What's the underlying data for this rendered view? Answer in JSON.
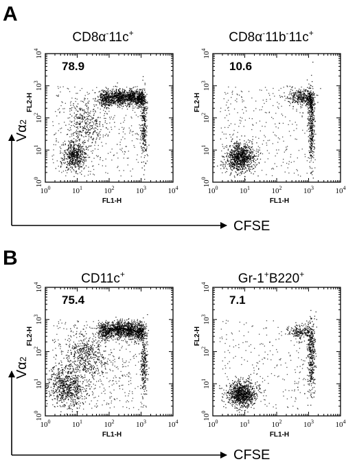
{
  "panels": [
    {
      "letter": "A",
      "x_marker": "CFSE",
      "y_marker_base": "V",
      "y_marker_alpha": "α",
      "y_marker_sub": "2"
    },
    {
      "letter": "B",
      "x_marker": "CFSE",
      "y_marker_base": "V",
      "y_marker_alpha": "α",
      "y_marker_sub": "2"
    }
  ],
  "chart_data": [
    {
      "type": "scatter",
      "panel": "A",
      "title_parts": [
        [
          "CD8",
          ""
        ],
        [
          "α",
          ""
        ],
        [
          "",
          "-"
        ],
        [
          "11c",
          ""
        ],
        [
          "",
          "+"
        ]
      ],
      "percent_label": "78.9",
      "xlabel": "FL1-H",
      "ylabel": "FL2-H",
      "xscale": "log",
      "yscale": "log",
      "xlim": [
        1,
        10000
      ],
      "ylim": [
        1,
        10000
      ],
      "xticks": [
        [
          "10",
          "0"
        ],
        [
          "10",
          "1"
        ],
        [
          "10",
          "2"
        ],
        [
          "10",
          "3"
        ],
        [
          "10",
          "4"
        ]
      ],
      "yticks": [
        [
          "10",
          "0"
        ],
        [
          "10",
          "1"
        ],
        [
          "10",
          "2"
        ],
        [
          "10",
          "3"
        ],
        [
          "10",
          "4"
        ]
      ],
      "populations": [
        {
          "x": 8,
          "y": 7,
          "spread_x": 0.18,
          "spread_y": 0.22,
          "n": 520,
          "angle": 0
        },
        {
          "x": 80,
          "y": 400,
          "spread_x": 0.14,
          "spread_y": 0.12,
          "n": 320,
          "angle": 0
        },
        {
          "x": 200,
          "y": 450,
          "spread_x": 0.12,
          "spread_y": 0.12,
          "n": 340,
          "angle": 0
        },
        {
          "x": 450,
          "y": 450,
          "spread_x": 0.11,
          "spread_y": 0.12,
          "n": 320,
          "angle": 0
        },
        {
          "x": 900,
          "y": 420,
          "spread_x": 0.08,
          "spread_y": 0.13,
          "n": 280,
          "angle": 0
        },
        {
          "x": 1200,
          "y": 60,
          "spread_x": 0.05,
          "spread_y": 0.55,
          "n": 240,
          "angle": 0
        },
        {
          "x": 20,
          "y": 70,
          "spread_x": 0.3,
          "spread_y": 0.35,
          "n": 300,
          "angle": 0.6
        }
      ],
      "background_points": 400
    },
    {
      "type": "scatter",
      "panel": "A",
      "title_parts": [
        [
          "CD8",
          ""
        ],
        [
          "α",
          ""
        ],
        [
          "",
          "-"
        ],
        [
          "11b",
          ""
        ],
        [
          "",
          "-"
        ],
        [
          "11c",
          ""
        ],
        [
          "",
          "+"
        ]
      ],
      "percent_label": "10.6",
      "xlabel": "FL1-H",
      "ylabel": "FL2-H",
      "xscale": "log",
      "yscale": "log",
      "xlim": [
        1,
        10000
      ],
      "ylim": [
        1,
        10000
      ],
      "xticks": [
        [
          "10",
          "0"
        ],
        [
          "10",
          "1"
        ],
        [
          "10",
          "2"
        ],
        [
          "10",
          "3"
        ],
        [
          "10",
          "4"
        ]
      ],
      "yticks": [
        [
          "10",
          "0"
        ],
        [
          "10",
          "1"
        ],
        [
          "10",
          "2"
        ],
        [
          "10",
          "3"
        ],
        [
          "10",
          "4"
        ]
      ],
      "populations": [
        {
          "x": 7,
          "y": 6,
          "spread_x": 0.22,
          "spread_y": 0.22,
          "n": 900,
          "angle": 0
        },
        {
          "x": 1200,
          "y": 60,
          "spread_x": 0.05,
          "spread_y": 0.55,
          "n": 320,
          "angle": 0
        },
        {
          "x": 600,
          "y": 450,
          "spread_x": 0.22,
          "spread_y": 0.12,
          "n": 300,
          "angle": 0
        },
        {
          "x": 1100,
          "y": 350,
          "spread_x": 0.05,
          "spread_y": 0.15,
          "n": 160,
          "angle": 0
        }
      ],
      "background_points": 320
    },
    {
      "type": "scatter",
      "panel": "B",
      "title_parts": [
        [
          "CD11c",
          ""
        ],
        [
          "",
          "+"
        ]
      ],
      "percent_label": "75.4",
      "xlabel": "FL1-H",
      "ylabel": "FL2-H",
      "xscale": "log",
      "yscale": "log",
      "xlim": [
        1,
        10000
      ],
      "ylim": [
        1,
        10000
      ],
      "xticks": [
        [
          "10",
          "0"
        ],
        [
          "10",
          "1"
        ],
        [
          "10",
          "2"
        ],
        [
          "10",
          "3"
        ],
        [
          "10",
          "4"
        ]
      ],
      "yticks": [
        [
          "10",
          "0"
        ],
        [
          "10",
          "1"
        ],
        [
          "10",
          "2"
        ],
        [
          "10",
          "3"
        ],
        [
          "10",
          "4"
        ]
      ],
      "populations": [
        {
          "x": 5,
          "y": 8,
          "spread_x": 0.3,
          "spread_y": 0.35,
          "n": 700,
          "angle": 0.3
        },
        {
          "x": 20,
          "y": 80,
          "spread_x": 0.3,
          "spread_y": 0.35,
          "n": 450,
          "angle": 0.6
        },
        {
          "x": 80,
          "y": 450,
          "spread_x": 0.14,
          "spread_y": 0.14,
          "n": 340,
          "angle": 0
        },
        {
          "x": 200,
          "y": 500,
          "spread_x": 0.12,
          "spread_y": 0.13,
          "n": 360,
          "angle": 0
        },
        {
          "x": 450,
          "y": 480,
          "spread_x": 0.11,
          "spread_y": 0.13,
          "n": 340,
          "angle": 0
        },
        {
          "x": 900,
          "y": 420,
          "spread_x": 0.09,
          "spread_y": 0.14,
          "n": 300,
          "angle": 0
        },
        {
          "x": 1200,
          "y": 40,
          "spread_x": 0.05,
          "spread_y": 0.5,
          "n": 220,
          "angle": 0
        }
      ],
      "background_points": 450
    },
    {
      "type": "scatter",
      "panel": "B",
      "title_parts": [
        [
          "Gr-1",
          ""
        ],
        [
          "",
          "+"
        ],
        [
          "B220",
          ""
        ],
        [
          "",
          "+"
        ]
      ],
      "percent_label": "7.1",
      "xlabel": "FL1-H",
      "ylabel": "FL2-H",
      "xscale": "log",
      "yscale": "log",
      "xlim": [
        1,
        10000
      ],
      "ylim": [
        1,
        10000
      ],
      "xticks": [
        [
          "10",
          "0"
        ],
        [
          "10",
          "1"
        ],
        [
          "10",
          "2"
        ],
        [
          "10",
          "3"
        ],
        [
          "10",
          "4"
        ]
      ],
      "yticks": [
        [
          "10",
          "0"
        ],
        [
          "10",
          "1"
        ],
        [
          "10",
          "2"
        ],
        [
          "10",
          "3"
        ],
        [
          "10",
          "4"
        ]
      ],
      "populations": [
        {
          "x": 8,
          "y": 5,
          "spread_x": 0.22,
          "spread_y": 0.2,
          "n": 900,
          "angle": 0
        },
        {
          "x": 1200,
          "y": 80,
          "spread_x": 0.06,
          "spread_y": 0.55,
          "n": 340,
          "angle": 0
        },
        {
          "x": 600,
          "y": 420,
          "spread_x": 0.2,
          "spread_y": 0.12,
          "n": 200,
          "angle": 0
        }
      ],
      "background_points": 260
    }
  ]
}
